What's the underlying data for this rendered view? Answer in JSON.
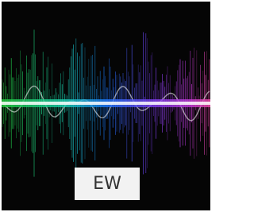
{
  "label": "EW"
}
